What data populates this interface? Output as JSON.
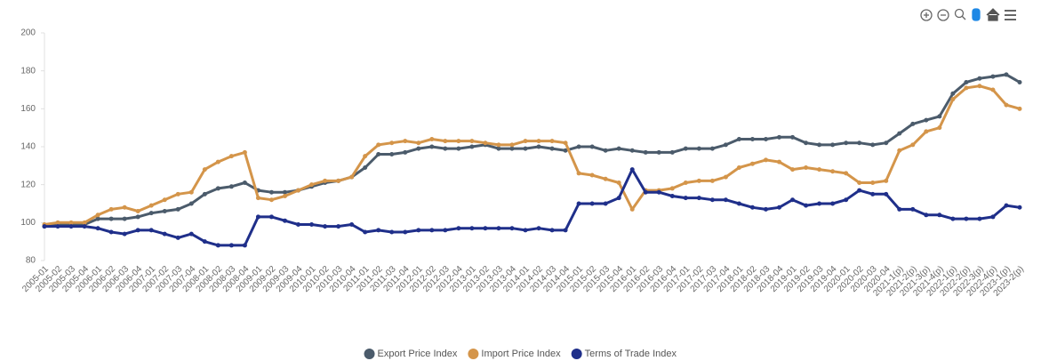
{
  "chart_data": {
    "type": "line",
    "categories": [
      "2005-01",
      "2005-02",
      "2005-03",
      "2005-04",
      "2006-01",
      "2006-02",
      "2006-03",
      "2006-04",
      "2007-01",
      "2007-02",
      "2007-03",
      "2007-04",
      "2008-01",
      "2008-02",
      "2008-03",
      "2008-04",
      "2009-01",
      "2009-02",
      "2009-03",
      "2009-04",
      "2010-01",
      "2010-02",
      "2010-03",
      "2010-04",
      "2011-01",
      "2011-02",
      "2011-03",
      "2011-04",
      "2012-01",
      "2012-02",
      "2012-03",
      "2012-04",
      "2013-01",
      "2013-02",
      "2013-03",
      "2013-04",
      "2014-01",
      "2014-02",
      "2014-03",
      "2014-04",
      "2015-01",
      "2015-02",
      "2015-03",
      "2015-04",
      "2016-01",
      "2016-02",
      "2016-03",
      "2016-04",
      "2017-01",
      "2017-02",
      "2017-03",
      "2017-04",
      "2018-01",
      "2018-02",
      "2018-03",
      "2018-04",
      "2019-01",
      "2019-02",
      "2019-03",
      "2019-04",
      "2020-01",
      "2020-02",
      "2020-03",
      "2020-04",
      "2021-1(p)",
      "2021-2(p)",
      "2021-3(p)",
      "2021-4(p)",
      "2022-1(p)",
      "2022-2(p)",
      "2022-3(p)",
      "2022-4(p)",
      "2023-1(p)",
      "2023-2(p)"
    ],
    "series": [
      {
        "name": "Export Price Index",
        "color": "#4b5b6b",
        "values": [
          98,
          99,
          99,
          99,
          102,
          102,
          102,
          103,
          105,
          106,
          107,
          110,
          115,
          118,
          119,
          121,
          117,
          116,
          116,
          117,
          119,
          121,
          122,
          124,
          129,
          136,
          136,
          137,
          139,
          140,
          139,
          139,
          140,
          141,
          139,
          139,
          139,
          140,
          139,
          138,
          140,
          140,
          138,
          139,
          138,
          137,
          137,
          137,
          139,
          139,
          139,
          141,
          144,
          144,
          144,
          145,
          145,
          142,
          141,
          141,
          142,
          142,
          141,
          142,
          147,
          152,
          154,
          156,
          168,
          174,
          176,
          177,
          178,
          174
        ]
      },
      {
        "name": "Import Price Index",
        "color": "#d4954a",
        "values": [
          99,
          100,
          100,
          100,
          104,
          107,
          108,
          106,
          109,
          112,
          115,
          116,
          128,
          132,
          135,
          137,
          113,
          112,
          114,
          117,
          120,
          122,
          122,
          124,
          135,
          141,
          142,
          143,
          142,
          144,
          143,
          143,
          143,
          142,
          141,
          141,
          143,
          143,
          143,
          142,
          126,
          125,
          123,
          121,
          107,
          117,
          117,
          118,
          121,
          122,
          122,
          124,
          129,
          131,
          133,
          132,
          128,
          129,
          128,
          127,
          126,
          121,
          121,
          122,
          138,
          141,
          148,
          150,
          165,
          171,
          172,
          170,
          162,
          160
        ]
      },
      {
        "name": "Terms of Trade Index",
        "color": "#1f2f8a",
        "values": [
          98,
          98,
          98,
          98,
          97,
          95,
          94,
          96,
          96,
          94,
          92,
          94,
          90,
          88,
          88,
          88,
          103,
          103,
          101,
          99,
          99,
          98,
          98,
          99,
          95,
          96,
          95,
          95,
          96,
          96,
          96,
          97,
          97,
          97,
          97,
          97,
          96,
          97,
          96,
          96,
          110,
          110,
          110,
          113,
          128,
          116,
          116,
          114,
          113,
          113,
          112,
          112,
          110,
          108,
          107,
          108,
          112,
          109,
          110,
          110,
          112,
          117,
          115,
          115,
          107,
          107,
          104,
          104,
          102,
          102,
          102,
          103,
          109,
          108
        ]
      }
    ],
    "ylim": [
      80,
      200
    ],
    "yticks": [
      80,
      100,
      120,
      140,
      160,
      180,
      200
    ],
    "grid": false,
    "legend": "bottom"
  }
}
